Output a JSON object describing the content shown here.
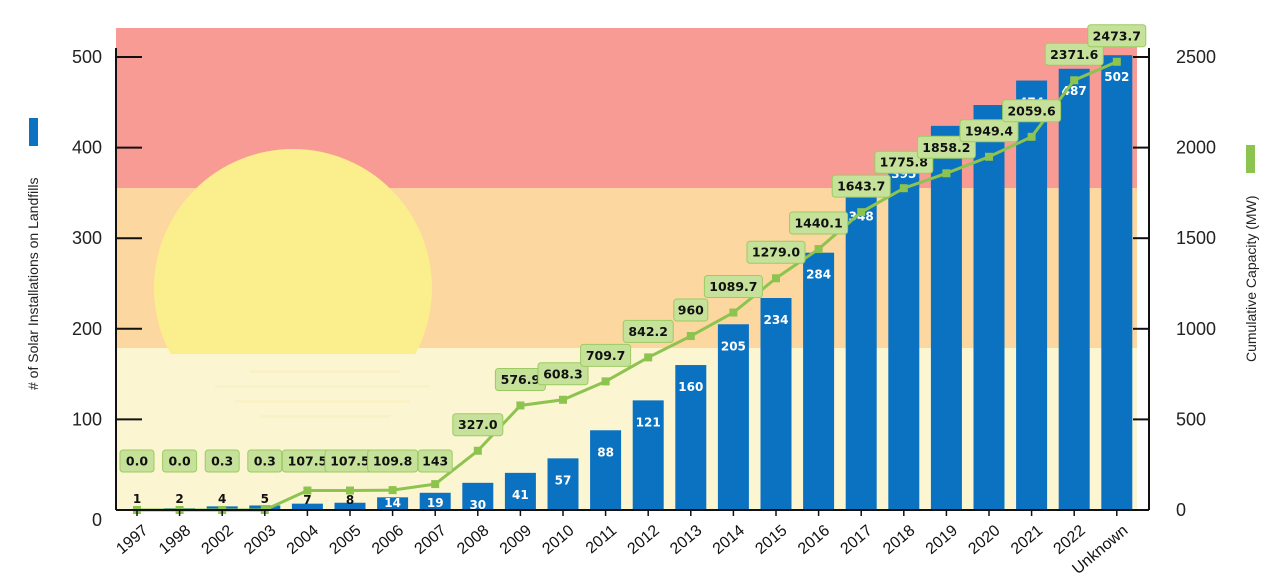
{
  "chart_data": {
    "type": "bar",
    "categories": [
      "1997",
      "1998",
      "2002",
      "2003",
      "2004",
      "2005",
      "2006",
      "2007",
      "2008",
      "2009",
      "2010",
      "2011",
      "2012",
      "2013",
      "2014",
      "2015",
      "2016",
      "2017",
      "2018",
      "2019",
      "2020",
      "2021",
      "2022",
      "Unknown"
    ],
    "series": [
      {
        "name": "# of Solar Installations on Landfills",
        "type": "bar",
        "axis": "left",
        "color": "#0a72c0",
        "values": [
          1,
          2,
          4,
          5,
          7,
          8,
          14,
          19,
          30,
          41,
          57,
          88,
          121,
          160,
          205,
          234,
          284,
          348,
          395,
          424,
          447,
          474,
          487,
          502
        ]
      },
      {
        "name": "Cumulative Capacity (MW)",
        "type": "line",
        "axis": "right",
        "color": "#8dc34f",
        "values": [
          0.0,
          0.0,
          0.3,
          0.3,
          107.5,
          107.5,
          109.8,
          143,
          327.0,
          576.9,
          608.3,
          709.7,
          842.2,
          960,
          1089.7,
          1279.0,
          1440.1,
          1643.7,
          1775.8,
          1858.2,
          1949.4,
          2059.6,
          2371.6,
          2473.7
        ],
        "labels": [
          "0.0",
          "0.0",
          "0.3",
          "0.3",
          "107.5",
          "107.5",
          "109.8",
          "143",
          "327.0",
          "576.9",
          "608.3",
          "709.7",
          "842.2",
          "960",
          "1089.7",
          "1279.0",
          "1440.1",
          "1643.7",
          "1775.8",
          "1858.2",
          "1949.4",
          "2059.6",
          "2371.6",
          "2473.7"
        ]
      }
    ],
    "ylabel": "# of Solar Installations on Landfills",
    "y2label": "Cumulative Capacity (MW)",
    "ylim": [
      0,
      500
    ],
    "y2lim": [
      0,
      2500
    ],
    "yticks": [
      0,
      100,
      200,
      300,
      400,
      500
    ],
    "y2ticks": [
      0,
      500,
      1000,
      1500,
      2000,
      2500
    ],
    "grid": false,
    "legend": "axis-side color swatches",
    "background_bands": [
      "#f99b95",
      "#fcd7a0",
      "#fcf5d2"
    ]
  }
}
